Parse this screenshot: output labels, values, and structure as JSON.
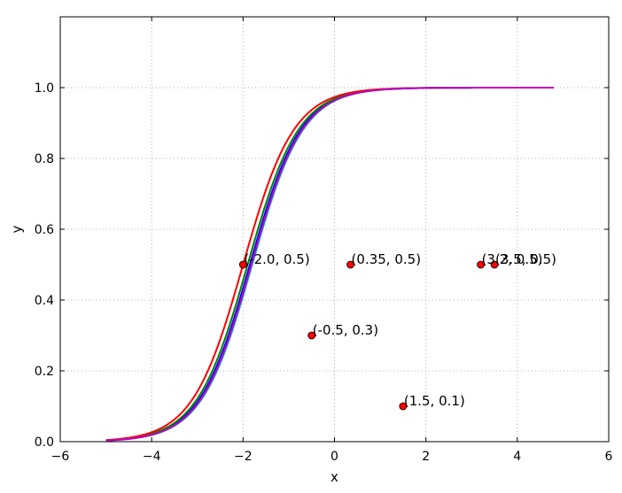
{
  "chart_data": {
    "type": "line",
    "title": "",
    "xlabel": "x",
    "ylabel": "y",
    "xlim": [
      -6,
      6
    ],
    "ylim": [
      0.0,
      1.2
    ],
    "xticks": [
      -6,
      -4,
      -2,
      0,
      2,
      4,
      6
    ],
    "xtick_labels": [
      "−6",
      "−4",
      "−2",
      "0",
      "2",
      "4",
      "6"
    ],
    "yticks": [
      0.0,
      0.2,
      0.4,
      0.6,
      0.8,
      1.0
    ],
    "ytick_labels": [
      "0.0",
      "0.2",
      "0.4",
      "0.6",
      "0.8",
      "1.0"
    ],
    "grid": true,
    "x_range_of_curves": [
      -5.0,
      4.8
    ],
    "series": [
      {
        "color": "#0000ff",
        "function": "sigmoid",
        "slope": 1.8,
        "center": -1.85
      },
      {
        "color": "#008000",
        "function": "sigmoid",
        "slope": 1.8,
        "center": -1.9
      },
      {
        "color": "#ff0000",
        "function": "sigmoid",
        "slope": 1.8,
        "center": -2.0
      },
      {
        "color": "#00bfbf",
        "function": "sigmoid",
        "slope": 1.8,
        "center": -1.8
      },
      {
        "color": "#bf00bf",
        "function": "sigmoid",
        "slope": 1.8,
        "center": -1.82
      }
    ],
    "points": [
      {
        "x": -2.0,
        "y": 0.5,
        "label": "(-2.0, 0.5)"
      },
      {
        "x": 0.35,
        "y": 0.5,
        "label": "(0.35, 0.5)"
      },
      {
        "x": -0.5,
        "y": 0.3,
        "label": "(-0.5, 0.3)"
      },
      {
        "x": 1.5,
        "y": 0.1,
        "label": "(1.5, 0.1)"
      },
      {
        "x": 3.2,
        "y": 0.5,
        "label": "(3.2, 0.5)"
      },
      {
        "x": 3.5,
        "y": 0.5,
        "label": "(3.5, 0.5)"
      }
    ],
    "point_color": "#ff0000"
  }
}
